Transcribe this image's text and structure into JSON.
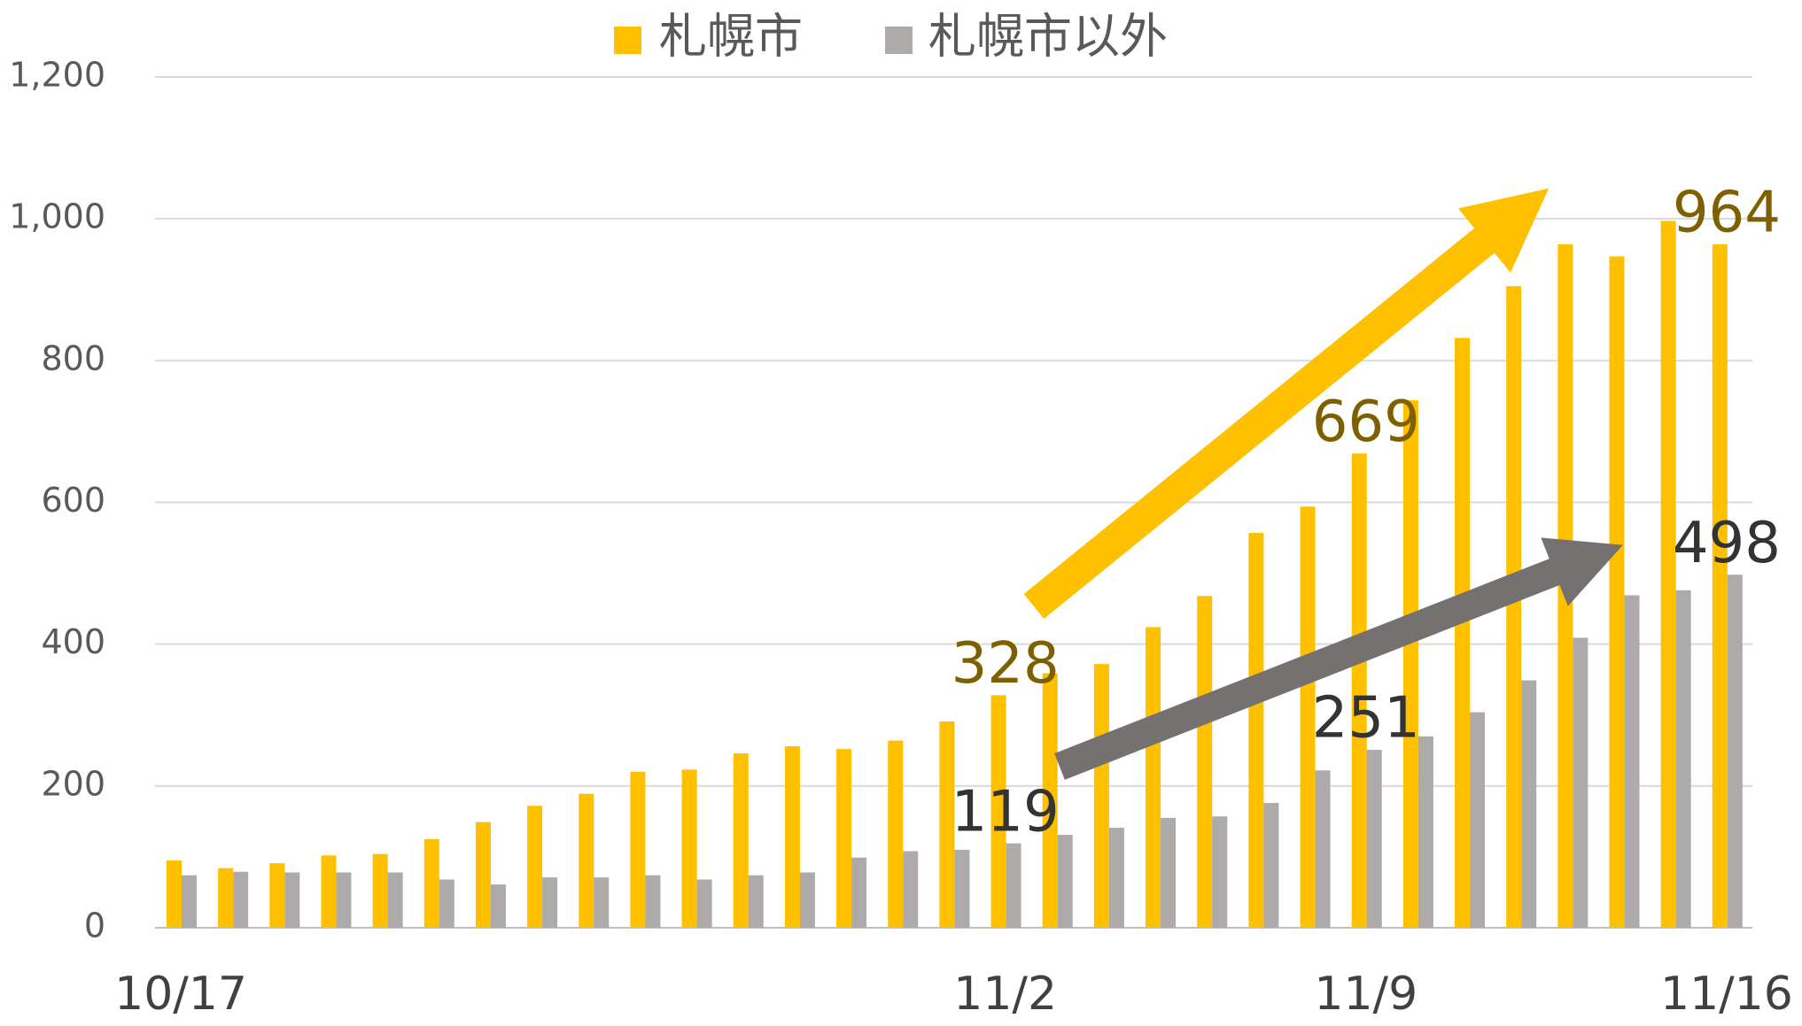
{
  "chart_data": {
    "type": "bar",
    "categories": [
      "10/17",
      null,
      null,
      null,
      null,
      null,
      null,
      null,
      null,
      null,
      null,
      null,
      null,
      null,
      null,
      null,
      "11/2",
      null,
      null,
      null,
      null,
      null,
      null,
      "11/9",
      null,
      null,
      null,
      null,
      null,
      null,
      "11/16"
    ],
    "series": [
      {
        "name": "札幌市",
        "color": "#ffc000",
        "label_color": "#7f6000",
        "values": [
          95,
          84,
          91,
          102,
          104,
          125,
          149,
          172,
          189,
          220,
          223,
          246,
          256,
          252,
          264,
          291,
          328,
          359,
          372,
          424,
          468,
          557,
          594,
          669,
          744,
          832,
          905,
          964,
          947,
          997,
          964
        ]
      },
      {
        "name": "札幌市以外",
        "color": "#aeaaaa",
        "label_color": "#333333",
        "values": [
          74,
          79,
          78,
          78,
          78,
          68,
          61,
          71,
          71,
          74,
          68,
          74,
          78,
          99,
          108,
          110,
          119,
          131,
          141,
          155,
          157,
          176,
          222,
          251,
          270,
          304,
          349,
          409,
          469,
          476,
          498
        ]
      }
    ],
    "data_labels_at": [
      16,
      23,
      30
    ],
    "ylim": [
      0,
      1200
    ],
    "yticks": [
      0,
      200,
      400,
      600,
      800,
      {
        "value": 1000,
        "label": "1,000"
      },
      {
        "value": 1200,
        "label": "1,200"
      }
    ],
    "grid": true
  }
}
